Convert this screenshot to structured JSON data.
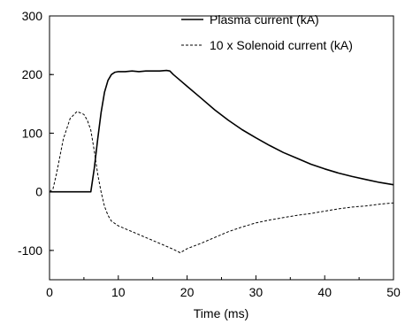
{
  "chart_data": {
    "type": "line",
    "title": "",
    "xlabel": "Time (ms)",
    "ylabel": "",
    "xlim": [
      0,
      50
    ],
    "ylim": [
      -150,
      300
    ],
    "xticks": [
      0,
      10,
      20,
      30,
      40,
      50
    ],
    "yticks": [
      -100,
      0,
      100,
      200,
      300
    ],
    "xtick_labels": [
      "0",
      "10",
      "20",
      "30",
      "40",
      "50"
    ],
    "ytick_labels": [
      "-100",
      "0",
      "100",
      "200",
      "300"
    ],
    "grid": false,
    "legend_position": "top-right",
    "series": [
      {
        "name": "Plasma current (kA)",
        "style": "solid",
        "color": "#000000",
        "x": [
          0,
          6.0,
          6.5,
          7.0,
          7.5,
          8.0,
          8.5,
          9.0,
          9.5,
          10.0,
          11,
          12,
          13,
          14,
          15,
          16,
          17,
          17.5,
          18,
          19,
          20,
          22,
          24,
          26,
          28,
          30,
          32,
          34,
          36,
          38,
          40,
          42,
          44,
          46,
          48,
          50
        ],
        "values": [
          0,
          0,
          40,
          90,
          135,
          170,
          190,
          200,
          204,
          205,
          205,
          206,
          205,
          206,
          206,
          206,
          207,
          206,
          200,
          190,
          180,
          160,
          140,
          122,
          106,
          92,
          79,
          67,
          57,
          47,
          39,
          32,
          26,
          21,
          16,
          12
        ]
      },
      {
        "name": "10 x Solenoid current (kA)",
        "style": "dashed",
        "color": "#000000",
        "x": [
          0,
          0.5,
          1,
          2,
          3,
          4,
          5,
          5.5,
          6,
          6.5,
          7,
          7.5,
          8,
          8.5,
          9,
          10,
          12,
          14,
          16,
          18,
          19,
          20,
          22,
          24,
          26,
          28,
          30,
          32,
          34,
          36,
          38,
          40,
          42,
          44,
          46,
          48,
          50
        ],
        "values": [
          0,
          5,
          30,
          90,
          125,
          137,
          132,
          122,
          105,
          70,
          30,
          0,
          -25,
          -40,
          -50,
          -58,
          -68,
          -78,
          -88,
          -98,
          -104,
          -97,
          -88,
          -78,
          -68,
          -60,
          -53,
          -48,
          -44,
          -40,
          -37,
          -33,
          -29,
          -26,
          -24,
          -21,
          -19
        ]
      }
    ]
  }
}
